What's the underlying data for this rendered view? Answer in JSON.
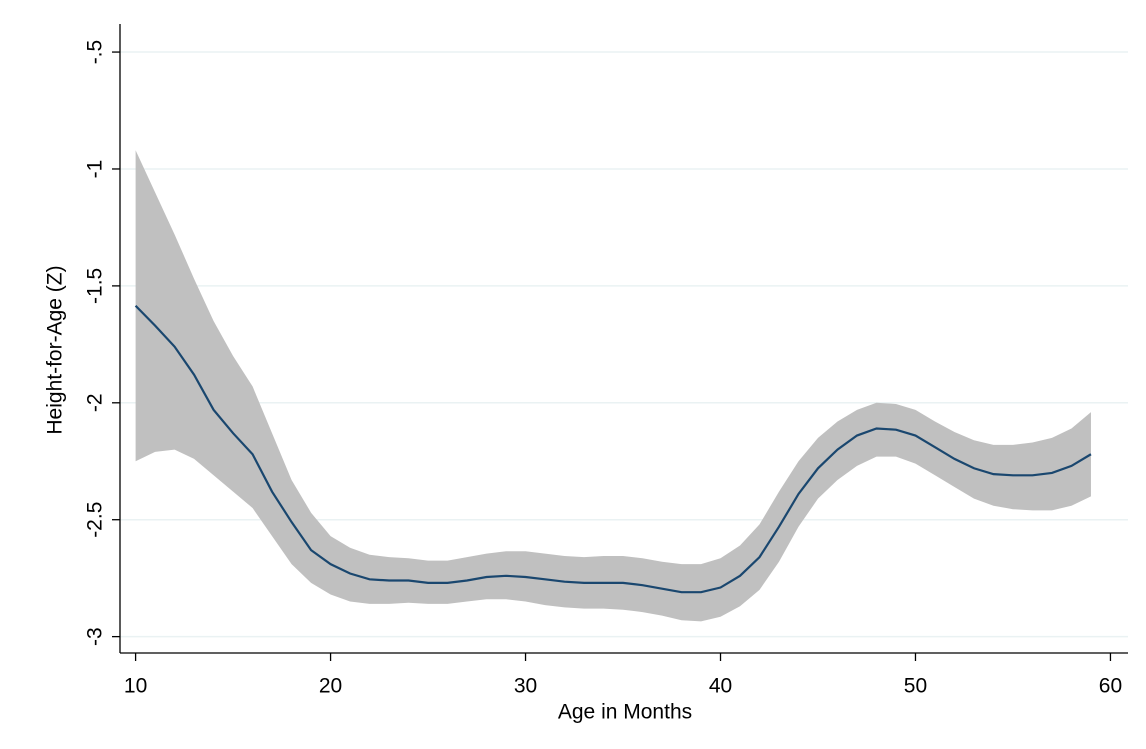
{
  "chart_data": {
    "type": "line",
    "x_label": "Age in Months",
    "y_label": "Height-for-Age (Z)",
    "x": [
      10,
      11,
      12,
      13,
      14,
      15,
      16,
      17,
      18,
      19,
      20,
      21,
      22,
      23,
      24,
      25,
      26,
      27,
      28,
      29,
      30,
      31,
      32,
      33,
      34,
      35,
      36,
      37,
      38,
      39,
      40,
      41,
      42,
      43,
      44,
      45,
      46,
      47,
      48,
      49,
      50,
      51,
      52,
      53,
      54,
      55,
      56,
      57,
      58,
      59
    ],
    "series": [
      {
        "color": "#1a476f",
        "values": [
          -1.585,
          -1.67,
          -1.76,
          -1.88,
          -2.03,
          -2.13,
          -2.22,
          -2.38,
          -2.51,
          -2.63,
          -2.69,
          -2.73,
          -2.755,
          -2.76,
          -2.76,
          -2.77,
          -2.77,
          -2.76,
          -2.745,
          -2.74,
          -2.745,
          -2.755,
          -2.765,
          -2.77,
          -2.77,
          -2.77,
          -2.78,
          -2.795,
          -2.81,
          -2.81,
          -2.79,
          -2.74,
          -2.66,
          -2.53,
          -2.39,
          -2.28,
          -2.2,
          -2.14,
          -2.11,
          -2.115,
          -2.14,
          -2.19,
          -2.24,
          -2.28,
          -2.305,
          -2.31,
          -2.31,
          -2.3,
          -2.27,
          -2.22
        ]
      }
    ],
    "ci": {
      "color": "#c0c0c0",
      "upper": [
        -0.92,
        -1.1,
        -1.28,
        -1.47,
        -1.65,
        -1.8,
        -1.93,
        -2.13,
        -2.33,
        -2.47,
        -2.57,
        -2.62,
        -2.65,
        -2.66,
        -2.665,
        -2.675,
        -2.675,
        -2.66,
        -2.645,
        -2.635,
        -2.635,
        -2.645,
        -2.655,
        -2.66,
        -2.655,
        -2.655,
        -2.665,
        -2.68,
        -2.69,
        -2.69,
        -2.665,
        -2.61,
        -2.52,
        -2.38,
        -2.25,
        -2.15,
        -2.08,
        -2.03,
        -2.0,
        -2.005,
        -2.03,
        -2.08,
        -2.125,
        -2.16,
        -2.18,
        -2.18,
        -2.17,
        -2.15,
        -2.11,
        -2.04
      ],
      "lower": [
        -2.25,
        -2.21,
        -2.2,
        -2.24,
        -2.31,
        -2.38,
        -2.45,
        -2.57,
        -2.69,
        -2.77,
        -2.82,
        -2.85,
        -2.86,
        -2.86,
        -2.855,
        -2.86,
        -2.86,
        -2.85,
        -2.84,
        -2.84,
        -2.85,
        -2.865,
        -2.875,
        -2.88,
        -2.88,
        -2.885,
        -2.895,
        -2.91,
        -2.93,
        -2.935,
        -2.915,
        -2.87,
        -2.8,
        -2.68,
        -2.53,
        -2.41,
        -2.33,
        -2.27,
        -2.23,
        -2.23,
        -2.26,
        -2.31,
        -2.36,
        -2.41,
        -2.44,
        -2.455,
        -2.46,
        -2.46,
        -2.44,
        -2.4
      ]
    },
    "xlim": [
      9.2,
      60.9
    ],
    "xticks": [
      10,
      20,
      30,
      40,
      50,
      60
    ],
    "ylim": [
      -3.07,
      -0.38
    ],
    "yticks": [
      -3,
      -2.5,
      -2,
      -1.5,
      -1,
      {
        "value": -0.5,
        "label": "-.5"
      }
    ],
    "grid": true,
    "grid_color": "#eaf2f3"
  }
}
